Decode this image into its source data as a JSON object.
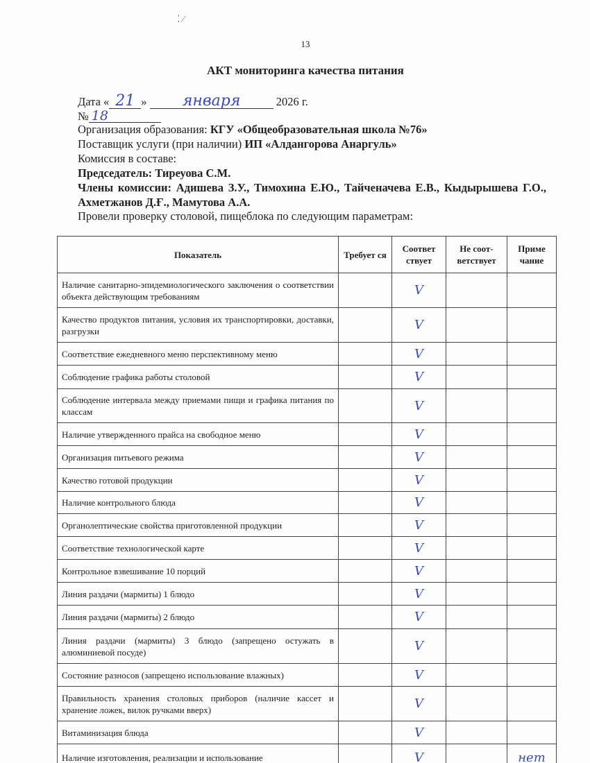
{
  "page_number": "13",
  "title": "АКТ мониторинга качества питания",
  "header": {
    "date_label": "Дата «",
    "date_day": "21",
    "date_mid": "»",
    "date_month": "января",
    "date_year": "2026 г.",
    "number_label": "№",
    "number_value": "18",
    "org_label": "Организация образования:",
    "org_value": "КГУ «Общеобразовательная школа №76»",
    "supplier_label": "Поставщик услуги (при наличии)",
    "supplier_value": "ИП «Алдангорова Анаргуль»",
    "commission_label": "Комиссия в составе:",
    "chair": "Председатель: Тиреуова С.М.",
    "members": "Члены комиссии: Адишева З.У., Тимохина Е.Ю., Тайченачева Е.В., Кыдырышева Г.О., Ахметжанов Д.Ғ., Мамутова А.А.",
    "intro": "Провели проверку столовой, пищеблока по следующим параметрам:"
  },
  "table": {
    "columns": [
      "Показатель",
      "Требуется",
      "Соответствует",
      "Не соответствует",
      "Примечание"
    ],
    "columns_display": [
      "Показатель",
      "Требует ся",
      "Соответ ствует",
      "Не соот- ветствует",
      "Приме чание"
    ],
    "check_mark": "V",
    "rows": [
      {
        "indicator": "Наличие санитарно-эпидемиологического заключения о соответствии объекта действующим требованиям",
        "required": "",
        "complies": "V",
        "not_complies": "",
        "note": ""
      },
      {
        "indicator": "Качество продуктов питания, условия их транспортировки, доставки, разгрузки",
        "required": "",
        "complies": "V",
        "not_complies": "",
        "note": ""
      },
      {
        "indicator": "Соответствие ежедневного меню перспективному меню",
        "required": "",
        "complies": "V",
        "not_complies": "",
        "note": ""
      },
      {
        "indicator": "Соблюдение графика работы столовой",
        "required": "",
        "complies": "V",
        "not_complies": "",
        "note": ""
      },
      {
        "indicator": "Соблюдение интервала между приемами пищи и графика питания по классам",
        "required": "",
        "complies": "V",
        "not_complies": "",
        "note": ""
      },
      {
        "indicator": "Наличие утвержденного прайса на свободное меню",
        "required": "",
        "complies": "V",
        "not_complies": "",
        "note": ""
      },
      {
        "indicator": "Организация питьевого режима",
        "required": "",
        "complies": "V",
        "not_complies": "",
        "note": ""
      },
      {
        "indicator": "Качество готовой продукции",
        "required": "",
        "complies": "V",
        "not_complies": "",
        "note": ""
      },
      {
        "indicator": "Наличие контрольного блюда",
        "required": "",
        "complies": "V",
        "not_complies": "",
        "note": ""
      },
      {
        "indicator": "Органолептические свойства приготовленной продукции",
        "required": "",
        "complies": "V",
        "not_complies": "",
        "note": ""
      },
      {
        "indicator": "Соответствие технологической карте",
        "required": "",
        "complies": "V",
        "not_complies": "",
        "note": ""
      },
      {
        "indicator": "Контрольное взвешивание 10 порций",
        "required": "",
        "complies": "V",
        "not_complies": "",
        "note": ""
      },
      {
        "indicator": "Линия раздачи (мармиты) 1 блюдо",
        "required": "",
        "complies": "V",
        "not_complies": "",
        "note": ""
      },
      {
        "indicator": "Линия раздачи (мармиты) 2 блюдо",
        "required": "",
        "complies": "V",
        "not_complies": "",
        "note": ""
      },
      {
        "indicator": "Линия раздачи (мармиты) 3 блюдо (запрещено остужать в алюминиевой посуде)",
        "required": "",
        "complies": "V",
        "not_complies": "",
        "note": ""
      },
      {
        "indicator": "Состояние разносов (запрещено использование влажных)",
        "required": "",
        "complies": "V",
        "not_complies": "",
        "note": ""
      },
      {
        "indicator": "Правильность хранения столовых приборов (наличие кассет и хранение ложек, вилок ручками вверх)",
        "required": "",
        "complies": "V",
        "not_complies": "",
        "note": ""
      },
      {
        "indicator": "Витаминизация блюда",
        "required": "",
        "complies": "V",
        "not_complies": "",
        "note": ""
      },
      {
        "indicator": "Наличие изготовления, реализации и использование",
        "required": "",
        "complies": "V",
        "not_complies": "",
        "note": "нет"
      }
    ]
  }
}
